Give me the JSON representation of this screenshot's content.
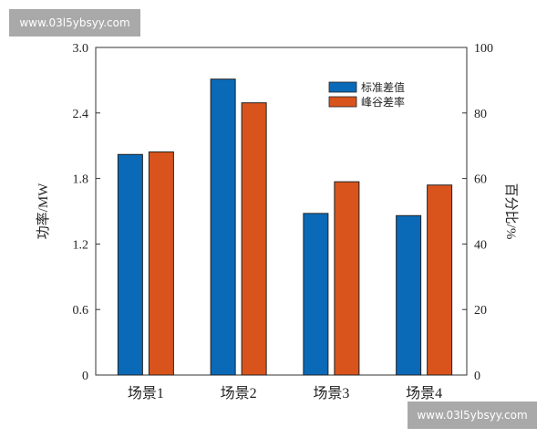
{
  "chart_data": {
    "type": "bar",
    "categories": [
      "场景1",
      "场景2",
      "场景3",
      "场景4"
    ],
    "series": [
      {
        "name": "标准差值",
        "axis": "left",
        "color": "#0a6ab8",
        "values": [
          2.02,
          2.71,
          1.48,
          1.46
        ]
      },
      {
        "name": "峰谷差率",
        "axis": "right",
        "color": "#d9541c",
        "values": [
          68.1,
          83.1,
          59.0,
          58.0
        ]
      }
    ],
    "ylabel": "功率/MW",
    "ylabel_right": "百分比/%",
    "ylim": [
      0,
      3.0
    ],
    "ylim_right": [
      0,
      100
    ],
    "yticks": [
      "0",
      "0.6",
      "1.2",
      "1.8",
      "2.4",
      "3.0"
    ],
    "yticks_right": [
      "0",
      "20",
      "40",
      "60",
      "80",
      "100"
    ],
    "legend_position": "top-right",
    "grid": false
  },
  "watermark": "www.03l5ybsyy.com"
}
